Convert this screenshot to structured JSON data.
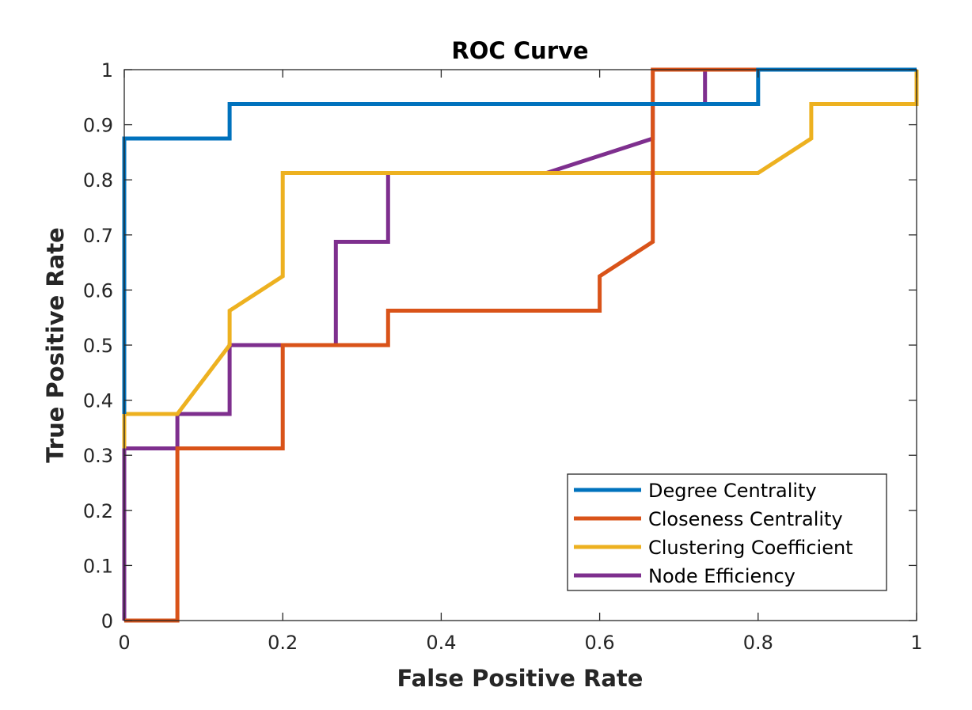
{
  "chart_data": {
    "type": "line",
    "title": "ROC Curve",
    "xlabel": "False Positive Rate",
    "ylabel": "True Positive Rate",
    "xlim": [
      0,
      1
    ],
    "ylim": [
      0,
      1
    ],
    "xticks": [
      "0",
      "0.2",
      "0.4",
      "0.6",
      "0.8",
      "1"
    ],
    "yticks": [
      "0",
      "0.1",
      "0.2",
      "0.3",
      "0.4",
      "0.5",
      "0.6",
      "0.7",
      "0.8",
      "0.9",
      "1"
    ],
    "grid": false,
    "legend_position": "bottom-right",
    "series": [
      {
        "name": "Degree Centrality",
        "color": "#0072BD",
        "points": [
          [
            0,
            0.375
          ],
          [
            0,
            0.875
          ],
          [
            0.133,
            0.875
          ],
          [
            0.133,
            0.9375
          ],
          [
            0.8,
            0.9375
          ],
          [
            0.8,
            1
          ],
          [
            1,
            1
          ]
        ]
      },
      {
        "name": "Closeness Centrality",
        "color": "#D95319",
        "points": [
          [
            0,
            0
          ],
          [
            0.067,
            0
          ],
          [
            0.067,
            0.3125
          ],
          [
            0.2,
            0.3125
          ],
          [
            0.2,
            0.5
          ],
          [
            0.333,
            0.5
          ],
          [
            0.333,
            0.5625
          ],
          [
            0.6,
            0.5625
          ],
          [
            0.6,
            0.625
          ],
          [
            0.667,
            0.6875
          ],
          [
            0.667,
            1
          ],
          [
            1,
            1
          ]
        ]
      },
      {
        "name": "Clustering Coefficient",
        "color": "#EDB120",
        "points": [
          [
            0,
            0.3125
          ],
          [
            0,
            0.375
          ],
          [
            0.067,
            0.375
          ],
          [
            0.133,
            0.5
          ],
          [
            0.133,
            0.5625
          ],
          [
            0.2,
            0.625
          ],
          [
            0.2,
            0.8125
          ],
          [
            0.8,
            0.8125
          ],
          [
            0.867,
            0.875
          ],
          [
            0.867,
            0.9375
          ],
          [
            1,
            0.9375
          ],
          [
            1,
            1
          ]
        ]
      },
      {
        "name": "Node Efficiency",
        "color": "#7E2F8E",
        "points": [
          [
            0,
            0
          ],
          [
            0,
            0.3125
          ],
          [
            0.067,
            0.3125
          ],
          [
            0.067,
            0.375
          ],
          [
            0.133,
            0.375
          ],
          [
            0.133,
            0.5
          ],
          [
            0.267,
            0.5
          ],
          [
            0.267,
            0.6875
          ],
          [
            0.333,
            0.6875
          ],
          [
            0.333,
            0.8125
          ],
          [
            0.533,
            0.8125
          ],
          [
            0.667,
            0.875
          ],
          [
            0.667,
            0.9375
          ],
          [
            0.733,
            0.9375
          ],
          [
            0.733,
            1
          ],
          [
            1,
            1
          ]
        ]
      }
    ]
  }
}
